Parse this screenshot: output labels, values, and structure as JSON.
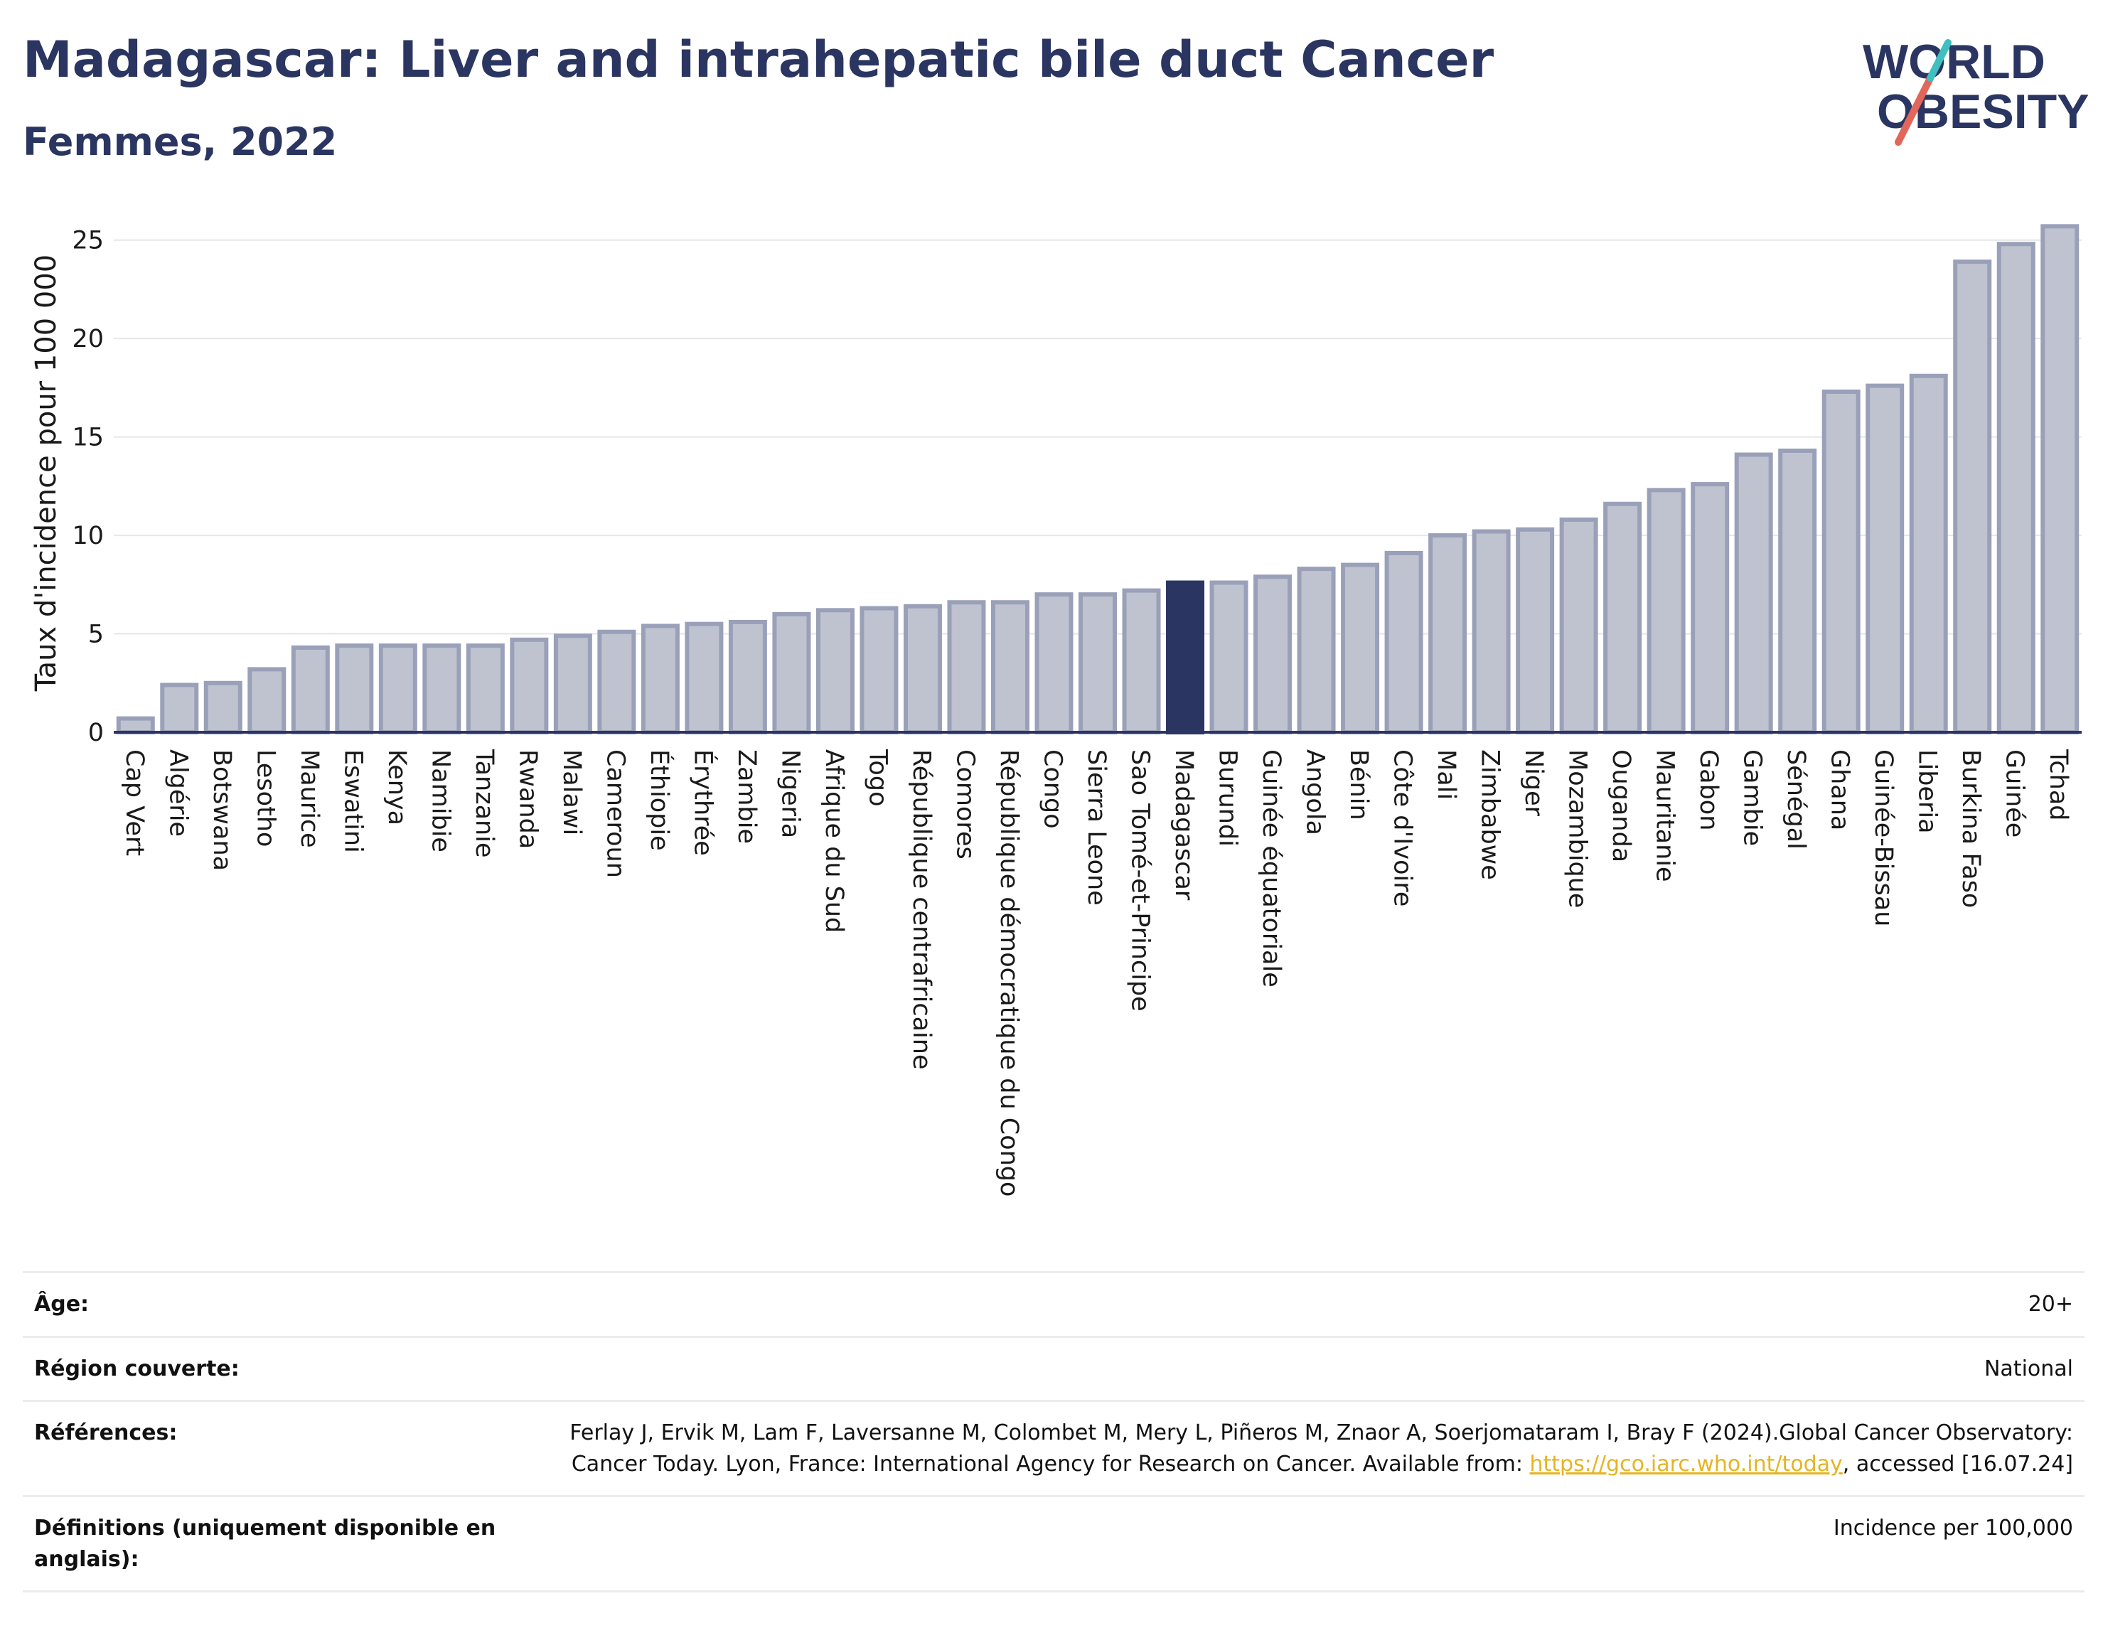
{
  "header": {
    "title": "Madagascar: Liver and intrahepatic bile duct Cancer",
    "subtitle": "Femmes, 2022"
  },
  "logo": {
    "line1": "WORLD",
    "line2": "OBESITY",
    "colors": {
      "text": "#2b3561",
      "slash_red": "#e0675a",
      "slash_teal": "#3fbfbf"
    }
  },
  "colors": {
    "bar_default": "#bfc3d0",
    "bar_border": "#9aa0b8",
    "bar_highlight": "#2b3561",
    "axis": "#2b3561",
    "grid": "#e6e6e6"
  },
  "chart_data": {
    "type": "bar",
    "title": "Madagascar: Liver and intrahepatic bile duct Cancer",
    "subtitle": "Femmes, 2022",
    "ylabel": "Taux d'incidence pour 100 000",
    "xlabel": "",
    "ylim": [
      0,
      26
    ],
    "yticks": [
      0,
      5,
      10,
      15,
      20,
      25
    ],
    "grid": true,
    "highlight": "Madagascar",
    "categories": [
      "Cap Vert",
      "Algérie",
      "Botswana",
      "Lesotho",
      "Maurice",
      "Eswatini",
      "Kenya",
      "Namibie",
      "Tanzanie",
      "Rwanda",
      "Malawi",
      "Cameroun",
      "Éthiopie",
      "Érythrée",
      "Zambie",
      "Nigeria",
      "Afrique du Sud",
      "Togo",
      "République centrafricaine",
      "Comores",
      "République démocratique du Congo",
      "Congo",
      "Sierra Leone",
      "Sao Tomé-et-Principe",
      "Madagascar",
      "Burundi",
      "Guinée équatoriale",
      "Angola",
      "Bénin",
      "Côte d'Ivoire",
      "Mali",
      "Zimbabwe",
      "Niger",
      "Mozambique",
      "Ouganda",
      "Mauritanie",
      "Gabon",
      "Gambie",
      "Sénégal",
      "Ghana",
      "Guinée-Bissau",
      "Liberia",
      "Burkina Faso",
      "Guinée",
      "Tchad"
    ],
    "values": [
      0.7,
      2.4,
      2.5,
      3.2,
      4.3,
      4.4,
      4.4,
      4.4,
      4.4,
      4.7,
      4.9,
      5.1,
      5.4,
      5.5,
      5.6,
      6.0,
      6.2,
      6.3,
      6.4,
      6.6,
      6.6,
      7.0,
      7.0,
      7.2,
      7.6,
      7.6,
      7.9,
      8.3,
      8.5,
      9.1,
      10.0,
      10.2,
      10.3,
      10.8,
      11.6,
      12.3,
      12.6,
      14.1,
      14.3,
      17.3,
      17.6,
      18.1,
      23.9,
      24.8,
      25.7
    ]
  },
  "metadata": {
    "rows": [
      {
        "key": "Âge:",
        "value": "20+"
      },
      {
        "key": "Région couverte:",
        "value": "National"
      },
      {
        "key": "Références:",
        "value_before": "Ferlay J, Ervik M, Lam F, Laversanne M, Colombet M, Mery L, Piñeros M, Znaor A, Soerjomataram I, Bray F (2024).Global Cancer Observatory: Cancer Today. Lyon, France: International Agency for Research on Cancer. Available from: ",
        "link": "https://gco.iarc.who.int/today",
        "value_after": ", accessed [16.07.24]"
      },
      {
        "key": "Définitions (uniquement disponible en anglais):",
        "value": "Incidence per 100,000"
      }
    ]
  }
}
